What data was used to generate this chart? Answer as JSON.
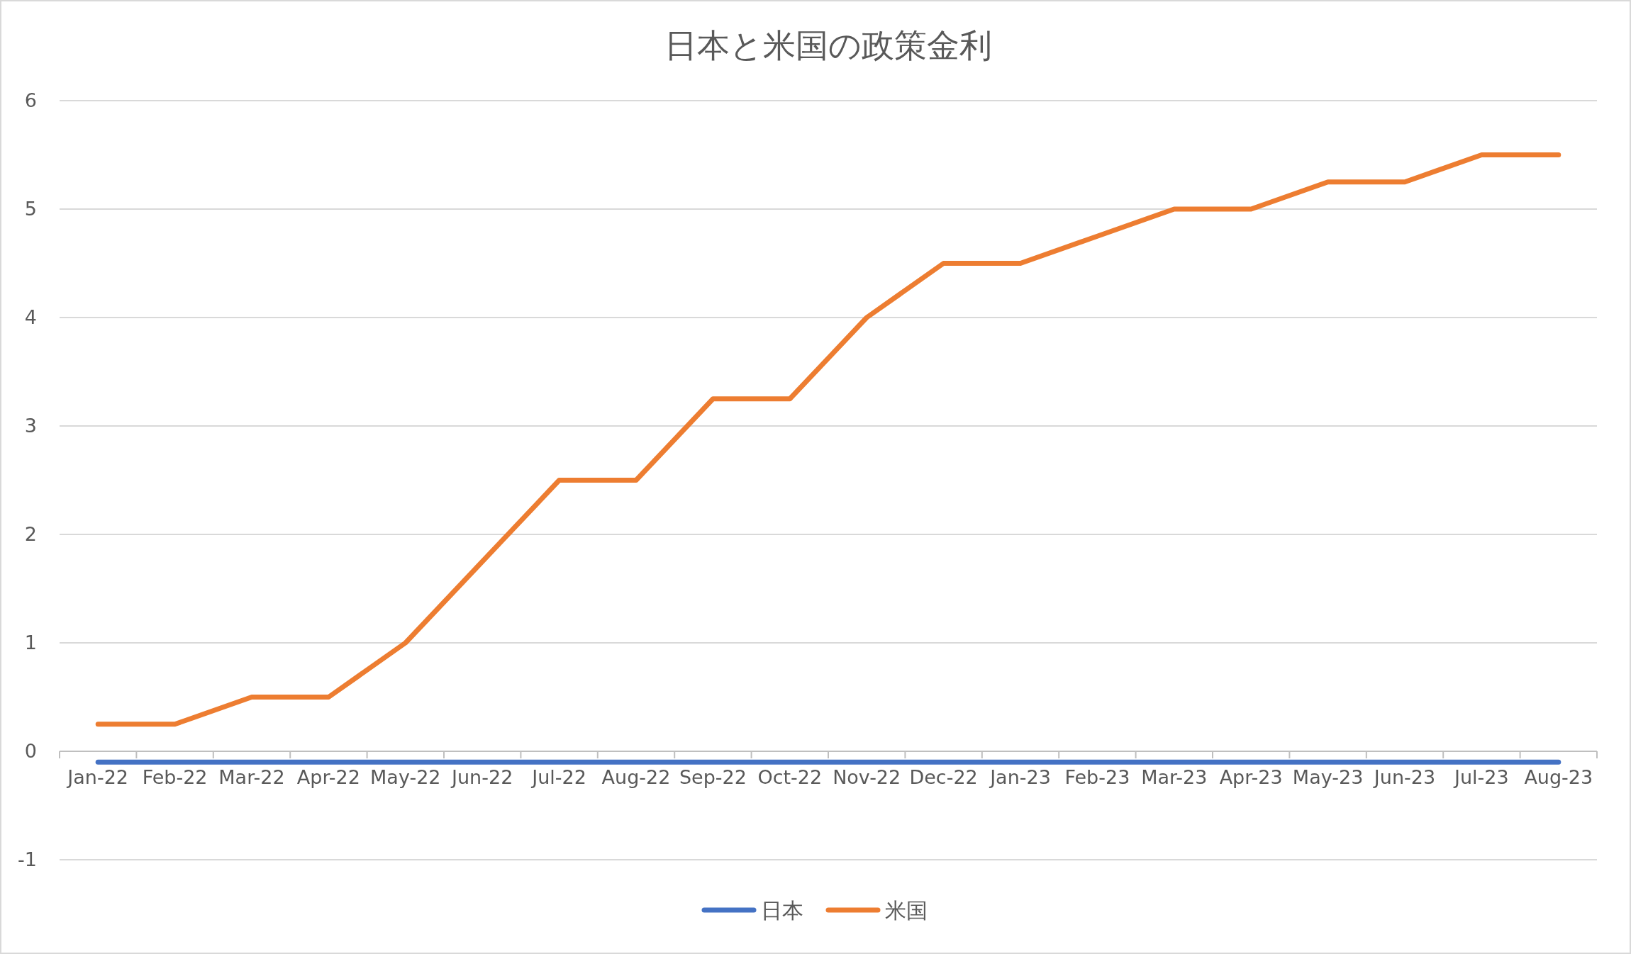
{
  "chart_data": {
    "type": "line",
    "title": "日本と米国の政策金利",
    "categories": [
      "Jan-22",
      "Feb-22",
      "Mar-22",
      "Apr-22",
      "May-22",
      "Jun-22",
      "Jul-22",
      "Aug-22",
      "Sep-22",
      "Oct-22",
      "Nov-22",
      "Dec-22",
      "Jan-23",
      "Feb-23",
      "Mar-23",
      "Apr-23",
      "May-23",
      "Jun-23",
      "Jul-23",
      "Aug-23"
    ],
    "series": [
      {
        "name": "日本",
        "color": "#4472c4",
        "values": [
          -0.1,
          -0.1,
          -0.1,
          -0.1,
          -0.1,
          -0.1,
          -0.1,
          -0.1,
          -0.1,
          -0.1,
          -0.1,
          -0.1,
          -0.1,
          -0.1,
          -0.1,
          -0.1,
          -0.1,
          -0.1,
          -0.1,
          -0.1
        ]
      },
      {
        "name": "米国",
        "color": "#ed7d31",
        "values": [
          0.25,
          0.25,
          0.5,
          0.5,
          1,
          1.75,
          2.5,
          2.5,
          3.25,
          3.25,
          4,
          4.5,
          4.5,
          4.75,
          5,
          5,
          5.25,
          5.25,
          5.5,
          5.5
        ]
      }
    ],
    "ylim": [
      -1,
      6
    ],
    "yticks": [
      -1,
      0,
      1,
      2,
      3,
      4,
      5,
      6
    ],
    "grid": "y",
    "legend": "bottom",
    "marker": "none",
    "line_style": "solid"
  }
}
